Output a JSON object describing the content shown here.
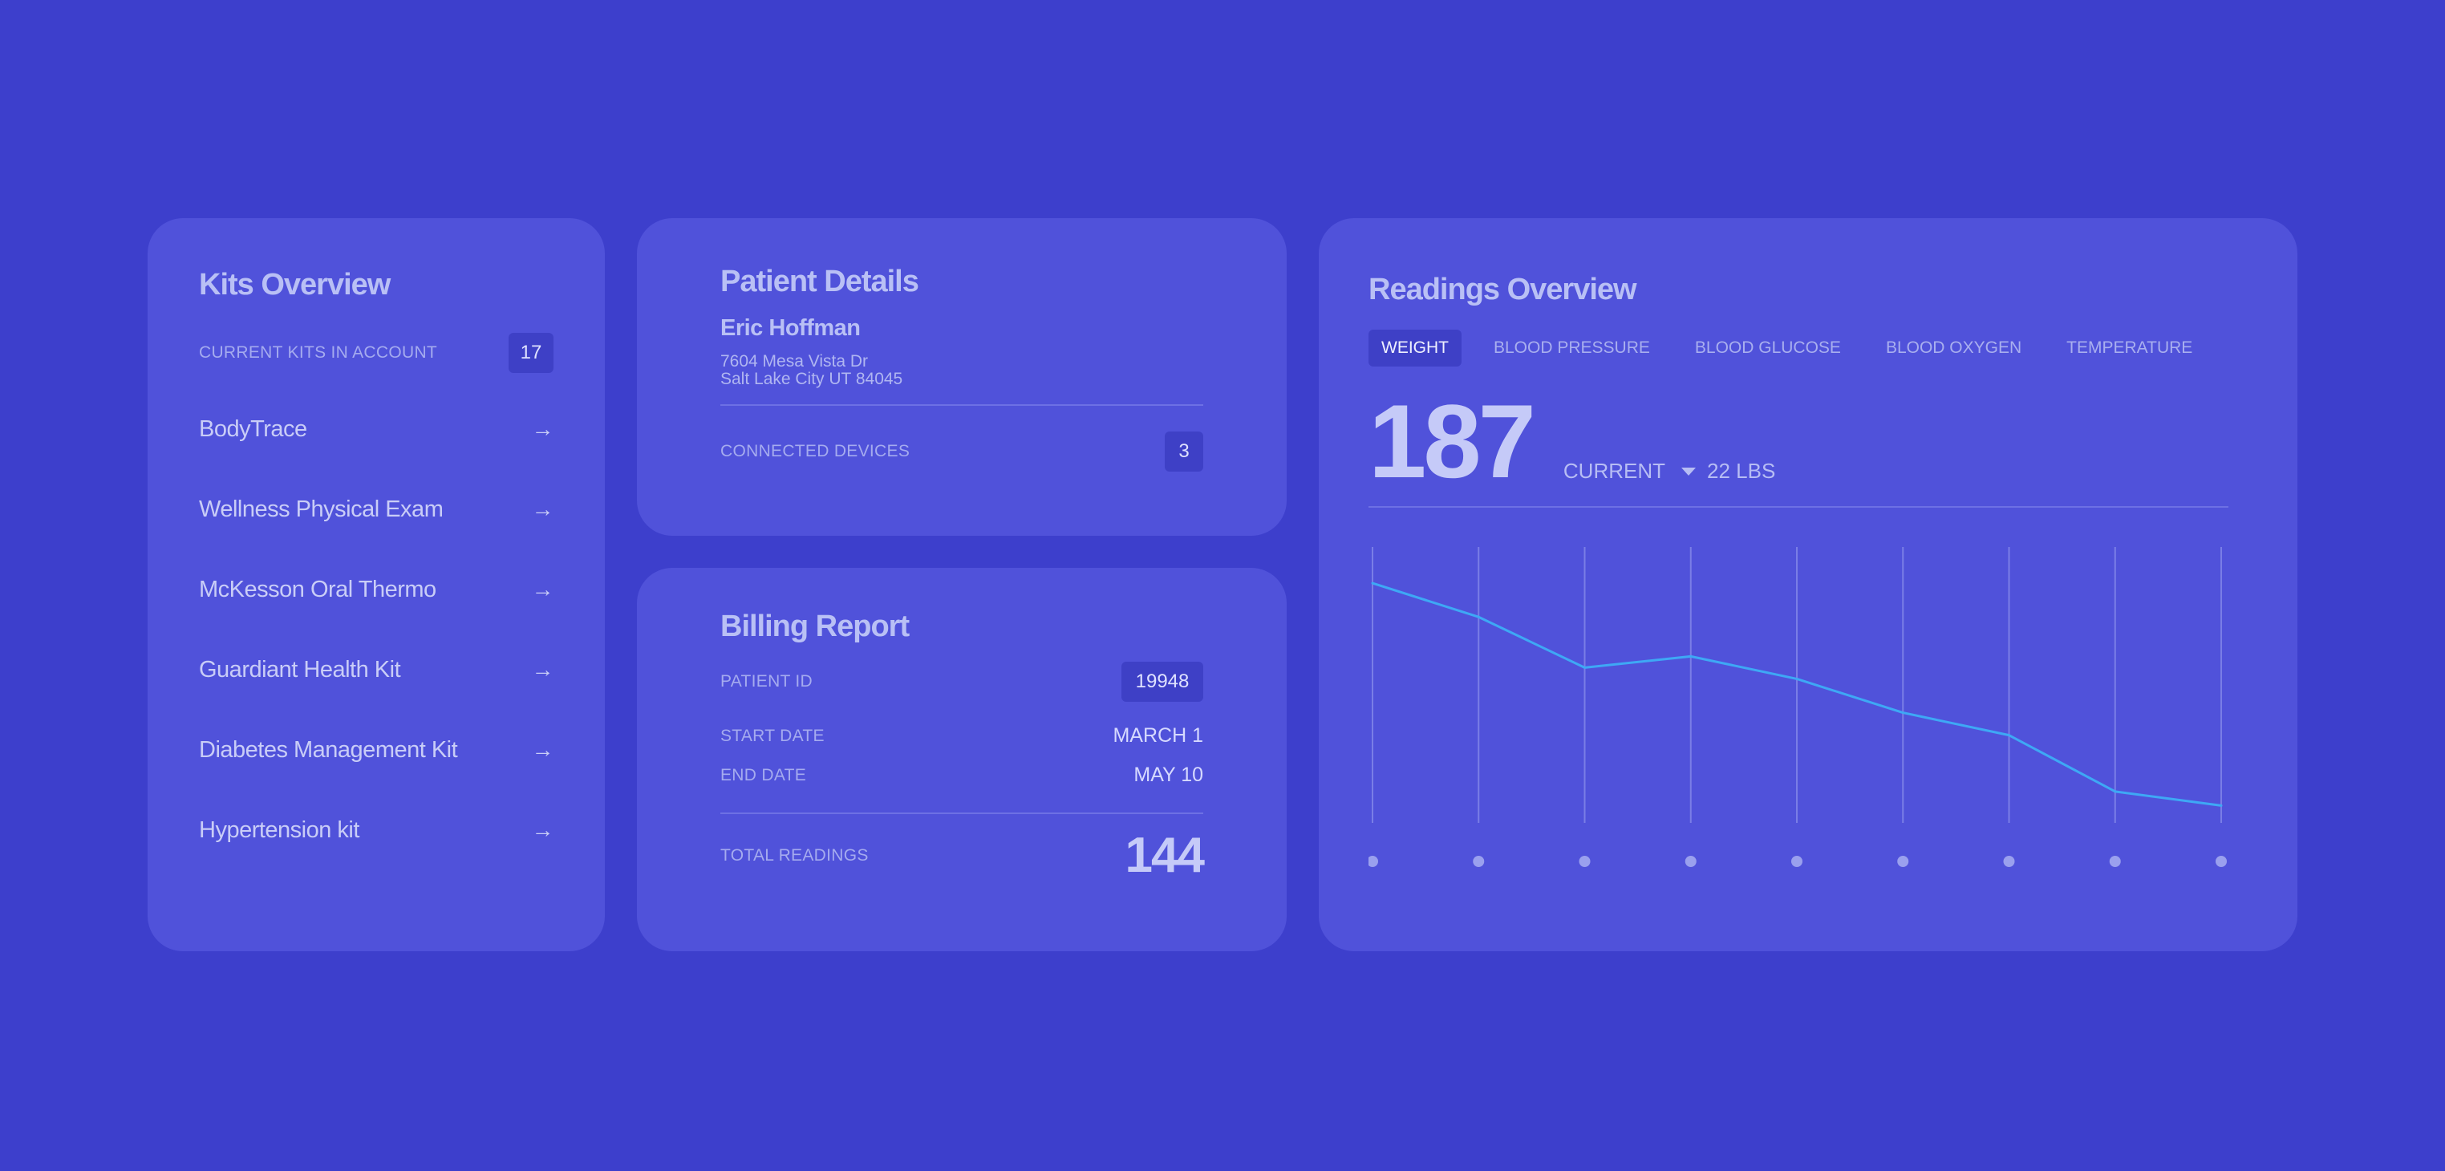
{
  "kits": {
    "title": "Kits Overview",
    "count_label": "CURRENT KITS IN ACCOUNT",
    "count": "17",
    "items": [
      {
        "label": "BodyTrace",
        "arrow": "→"
      },
      {
        "label": "Wellness Physical Exam",
        "arrow": "→"
      },
      {
        "label": "McKesson Oral Thermo",
        "arrow": "→"
      },
      {
        "label": "Guardiant Health Kit",
        "arrow": "→"
      },
      {
        "label": "Diabetes Management Kit",
        "arrow": "→"
      },
      {
        "label": "Hypertension kit",
        "arrow": "→"
      }
    ]
  },
  "patient": {
    "title": "Patient Details",
    "name": "Eric Hoffman",
    "address_line1": "7604 Mesa Vista Dr",
    "address_line2": "Salt Lake City UT 84045",
    "devices_label": "CONNECTED DEVICES",
    "devices_count": "3"
  },
  "billing": {
    "title": "Billing Report",
    "patient_id_label": "PATIENT ID",
    "patient_id": "19948",
    "start_label": "START DATE",
    "start_value": "MARCH 1",
    "end_label": "END DATE",
    "end_value": "MAY 10",
    "total_label": "TOTAL READINGS",
    "total_value": "144"
  },
  "readings": {
    "title": "Readings Overview",
    "tabs": [
      "WEIGHT",
      "BLOOD PRESSURE",
      "BLOOD GLUCOSE",
      "BLOOD OXYGEN",
      "TEMPERATURE"
    ],
    "active_tab": 0,
    "current_value": "187",
    "current_label": "CURRENT",
    "change": "22 LBS"
  },
  "chart_data": {
    "type": "line",
    "title": "",
    "xlabel": "",
    "ylabel": "",
    "x": [
      1,
      2,
      3,
      4,
      5,
      6,
      7,
      8,
      9
    ],
    "series": [
      {
        "values": [
          209,
          203,
          194,
          196,
          192,
          186,
          182,
          172,
          169.5
        ]
      }
    ],
    "ylim": [
      165,
      214
    ],
    "grid": "vertical",
    "colors": {
      "line": "#3ea8f5",
      "grid": "#7a7ee6",
      "dots": "#9aa0ee"
    }
  },
  "colors": {
    "background": "#3d3fcc",
    "card": "#5052da",
    "badge": "#3e40c6",
    "accent_line": "#3ea8f5"
  }
}
